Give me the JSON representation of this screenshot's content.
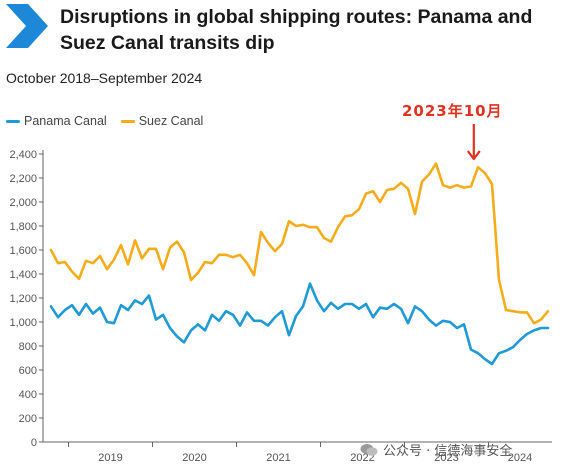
{
  "header": {
    "title": "Disruptions in global shipping routes: Panama and Suez Canal transits dip",
    "subtitle": "October 2018–September 2024",
    "brand_color": "#1e88d8"
  },
  "annotation": {
    "label": "2023年10月",
    "color": "#e0321e"
  },
  "watermark": {
    "text": "公众号 · 信德海事安全"
  },
  "chart_data": {
    "type": "line",
    "title": "Disruptions in global shipping routes: Panama and Suez Canal transits dip",
    "subtitle": "October 2018–September 2024",
    "x_start": "2018-10",
    "x_end": "2024-09",
    "x_ticks": [
      "2019",
      "2020",
      "2021",
      "2022",
      "2023",
      "2024"
    ],
    "ylim": [
      0,
      2400
    ],
    "y_ticks": [
      "0",
      "200",
      "400",
      "600",
      "800",
      "1,000",
      "1,200",
      "1,400",
      "1,600",
      "1,800",
      "2,000",
      "2,200",
      "2,400"
    ],
    "legend_position": "top-left",
    "grid": false,
    "series": [
      {
        "name": "Panama Canal",
        "color": "#1e9ad6",
        "values": [
          1130,
          1040,
          1100,
          1140,
          1060,
          1150,
          1070,
          1120,
          1000,
          990,
          1140,
          1100,
          1180,
          1150,
          1220,
          1020,
          1060,
          950,
          880,
          830,
          930,
          980,
          930,
          1060,
          1010,
          1090,
          1060,
          970,
          1080,
          1010,
          1010,
          970,
          1040,
          1090,
          890,
          1050,
          1130,
          1320,
          1180,
          1090,
          1160,
          1110,
          1150,
          1150,
          1110,
          1150,
          1040,
          1120,
          1110,
          1150,
          1110,
          990,
          1130,
          1090,
          1020,
          970,
          1010,
          1000,
          950,
          980,
          770,
          740,
          690,
          650,
          740,
          760,
          790,
          850,
          900,
          930,
          950,
          950
        ]
      },
      {
        "name": "Suez Canal",
        "color": "#f5ac1b",
        "values": [
          1600,
          1490,
          1500,
          1420,
          1360,
          1510,
          1490,
          1550,
          1440,
          1520,
          1640,
          1480,
          1680,
          1530,
          1610,
          1610,
          1440,
          1620,
          1670,
          1580,
          1350,
          1410,
          1500,
          1490,
          1560,
          1560,
          1540,
          1560,
          1490,
          1390,
          1750,
          1660,
          1590,
          1650,
          1840,
          1800,
          1810,
          1790,
          1790,
          1700,
          1670,
          1790,
          1880,
          1890,
          1940,
          2070,
          2090,
          2000,
          2100,
          2110,
          2160,
          2110,
          1900,
          2170,
          2230,
          2320,
          2140,
          2120,
          2140,
          2120,
          2130,
          2290,
          2240,
          2150,
          1350,
          1100,
          1090,
          1080,
          1080,
          990,
          1020,
          1090
        ]
      }
    ]
  }
}
